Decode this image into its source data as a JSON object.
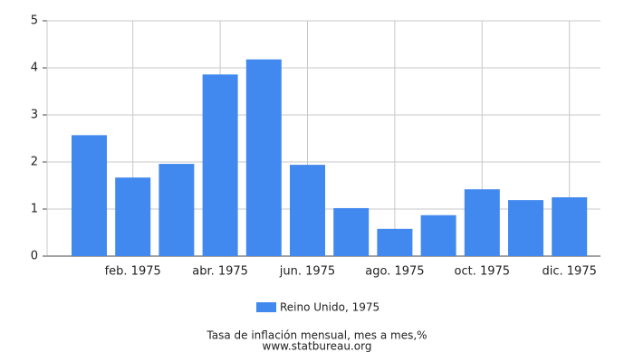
{
  "chart_data": {
    "type": "bar",
    "categories": [
      null,
      "feb. 1975",
      null,
      "abr. 1975",
      null,
      "jun. 1975",
      null,
      "ago. 1975",
      null,
      "oct. 1975",
      null,
      "dic. 1975"
    ],
    "series": [
      {
        "name": "Reino Unido, 1975",
        "color": "#4289ef",
        "values": [
          2.57,
          1.67,
          1.96,
          3.86,
          4.18,
          1.94,
          1.02,
          0.58,
          0.87,
          1.42,
          1.19,
          1.25
        ]
      }
    ],
    "ylim": [
      0,
      5
    ],
    "yticks": [
      0,
      1,
      2,
      3,
      4,
      5
    ],
    "grid": true,
    "legend_position": "bottom",
    "caption": "Tasa de inflación mensual, mes a mes,%",
    "source": "www.statbureau.org"
  }
}
